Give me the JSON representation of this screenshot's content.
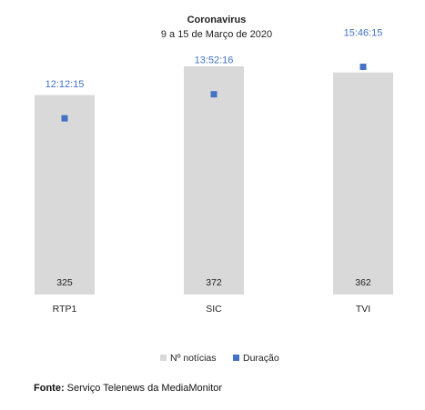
{
  "chart_data": {
    "type": "bar",
    "title": "Coronavirus",
    "subtitle": "9 a 15 de Março de 2020",
    "categories": [
      "RTP1",
      "SIC",
      "TVI"
    ],
    "series": [
      {
        "name": "Nº notícias",
        "kind": "bar",
        "color": "#d9d9d9",
        "values": [
          325,
          372,
          362
        ]
      },
      {
        "name": "Duração",
        "kind": "marker",
        "color": "#4472c4",
        "values": [
          "12:12:15",
          "13:52:16",
          "15:46:15"
        ],
        "values_seconds": [
          43935,
          49936,
          56775
        ]
      }
    ],
    "bar_ylim": [
      0,
      400
    ],
    "duration_ylim_seconds": [
      0,
      61200
    ],
    "grid": false,
    "legend_position": "bottom"
  },
  "legend": {
    "items": [
      {
        "label": "Nº notícias",
        "color": "#d9d9d9"
      },
      {
        "label": "Duração",
        "color": "#4472c4"
      }
    ]
  },
  "source": {
    "label": "Fonte:",
    "text": " Serviço Telenews da MediaMonitor"
  }
}
